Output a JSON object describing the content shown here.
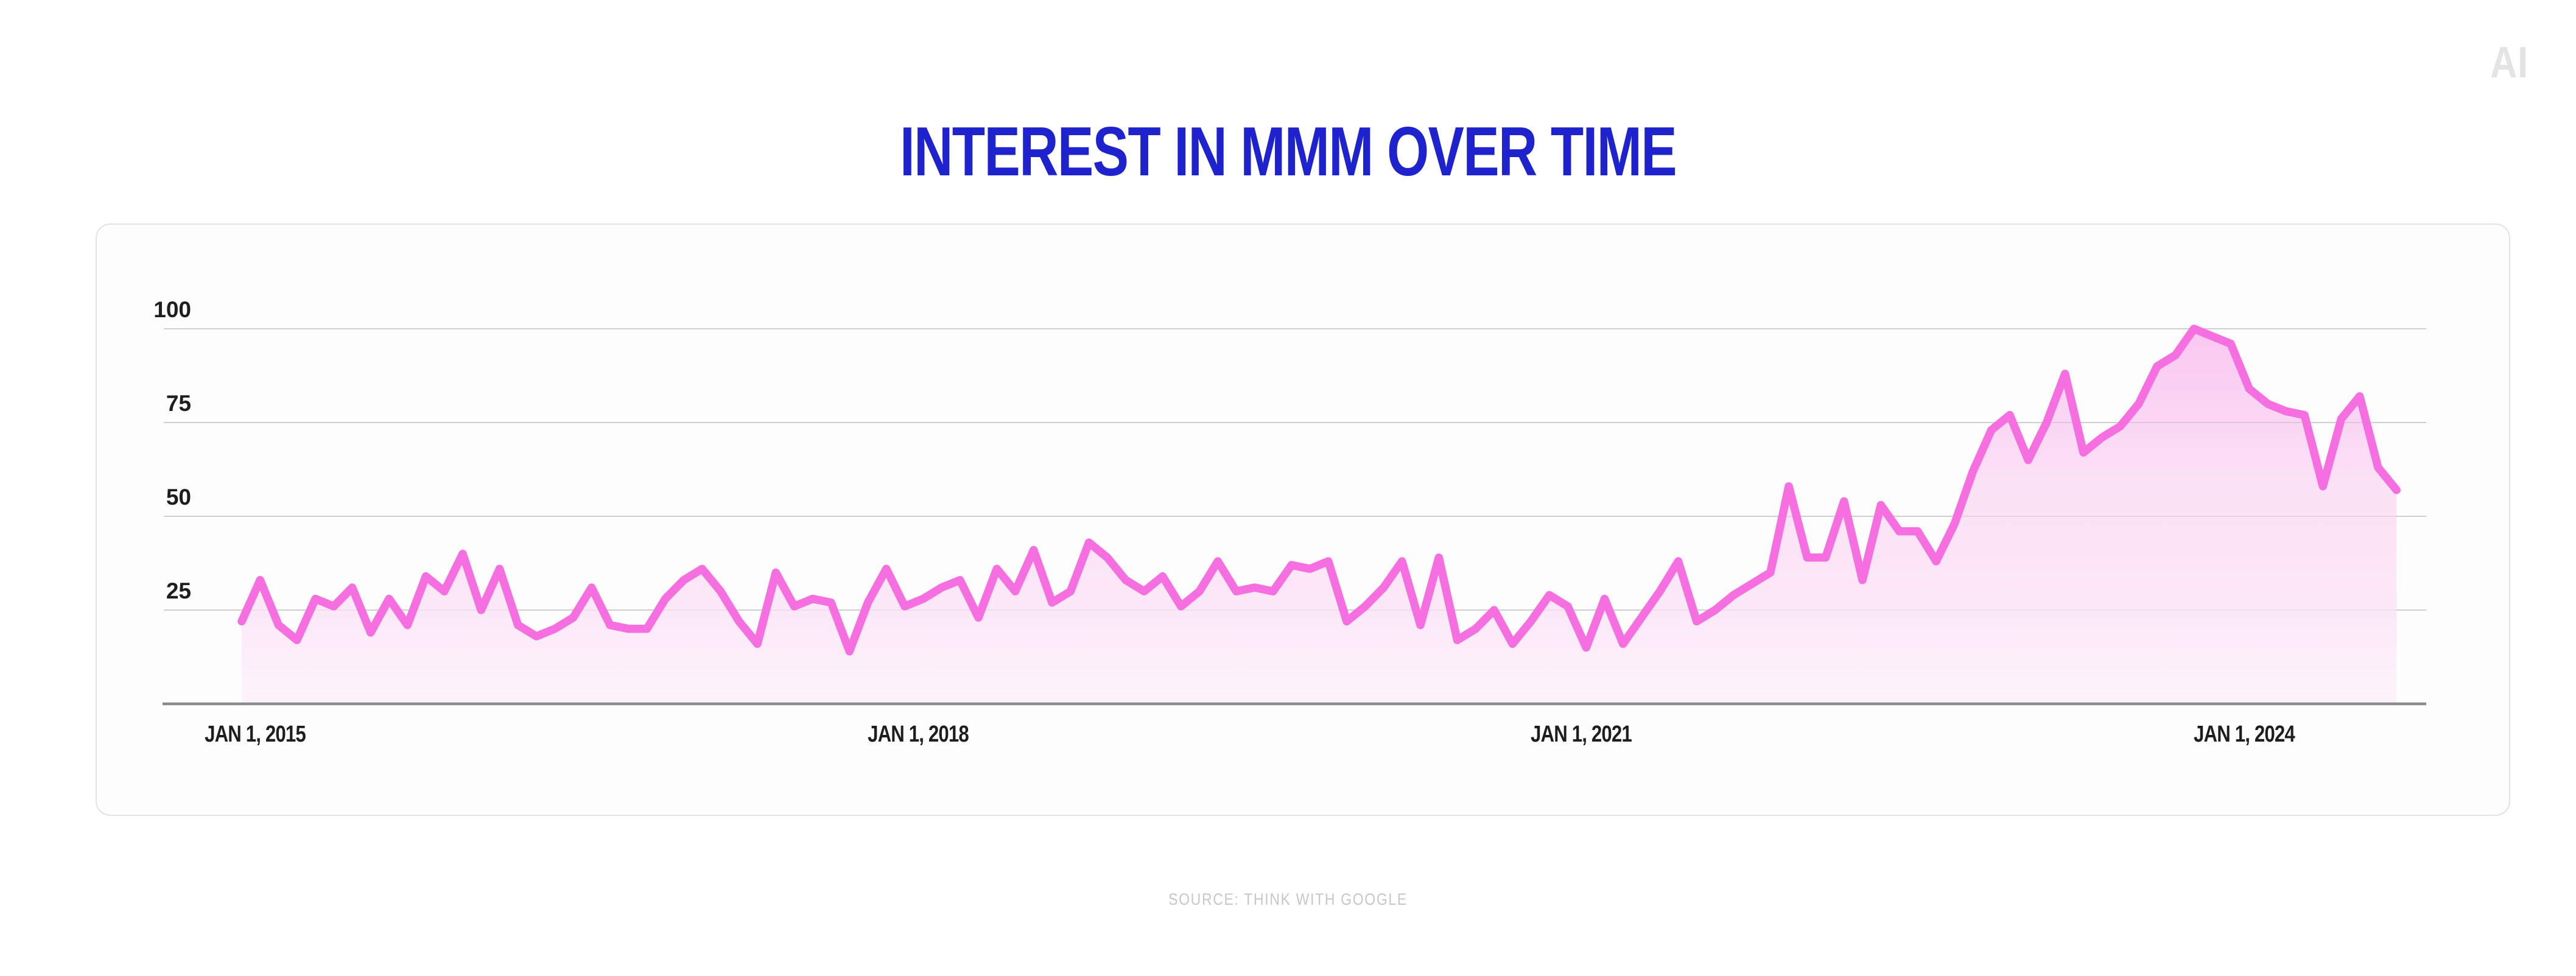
{
  "header": {
    "title": "INTEREST IN MMM OVER TIME"
  },
  "branding": {
    "logo": "AI"
  },
  "footer": {
    "source": "SOURCE: THINK WITH GOOGLE"
  },
  "colors": {
    "title_blue": "#1f23ce",
    "line_pink": "#f56fe0",
    "fill_top": "#f79ae7",
    "fill_mid": "#f9c9ef",
    "fill_bottom": "#fdf4fb",
    "gridline": "#cfcfcf",
    "axis": "#8a8a8a",
    "tick_label": "#1e1e1e",
    "source_gray": "#c7c7c7",
    "logo_gray": "#e4e4e4",
    "card_border": "#e3e3e3",
    "card_bg": "#fdfdfd"
  },
  "chart_data": {
    "type": "area",
    "title": "Interest in MMM over time",
    "xlabel": "",
    "ylabel": "",
    "ylim": [
      0,
      100
    ],
    "grid": true,
    "legend": "none",
    "x_unit": "month",
    "x_start_label": "Jan 2015",
    "x_end_label": "Oct 2024",
    "yticks": [
      100,
      75,
      50,
      25
    ],
    "xticks": [
      {
        "label": "JAN 1, 2015",
        "month_index": 0
      },
      {
        "label": "JAN 1, 2018",
        "month_index": 36
      },
      {
        "label": "JAN 1, 2021",
        "month_index": 72
      },
      {
        "label": "JAN 1, 2024",
        "month_index": 108
      }
    ],
    "series": [
      {
        "name": "Interest in MMM",
        "start_year": 2015,
        "start_month": 1,
        "values": [
          22,
          33,
          21,
          17,
          28,
          26,
          31,
          19,
          28,
          21,
          34,
          30,
          40,
          25,
          36,
          21,
          18,
          20,
          23,
          31,
          21,
          20,
          20,
          28,
          33,
          36,
          30,
          22,
          16,
          35,
          26,
          28,
          27,
          14,
          27,
          36,
          26,
          28,
          31,
          33,
          23,
          36,
          30,
          41,
          27,
          30,
          43,
          39,
          33,
          30,
          34,
          26,
          30,
          38,
          30,
          31,
          30,
          37,
          36,
          38,
          22,
          26,
          31,
          38,
          21,
          39,
          17,
          20,
          25,
          16,
          22,
          29,
          26,
          15,
          28,
          16,
          23,
          30,
          38,
          22,
          25,
          29,
          32,
          35,
          58,
          39,
          39,
          54,
          33,
          53,
          46,
          46,
          38,
          48,
          62,
          73,
          77,
          65,
          75,
          88,
          67,
          71,
          74,
          80,
          90,
          93,
          100,
          98,
          96,
          84,
          80,
          78,
          77,
          58,
          76,
          82,
          63,
          57
        ]
      }
    ]
  }
}
